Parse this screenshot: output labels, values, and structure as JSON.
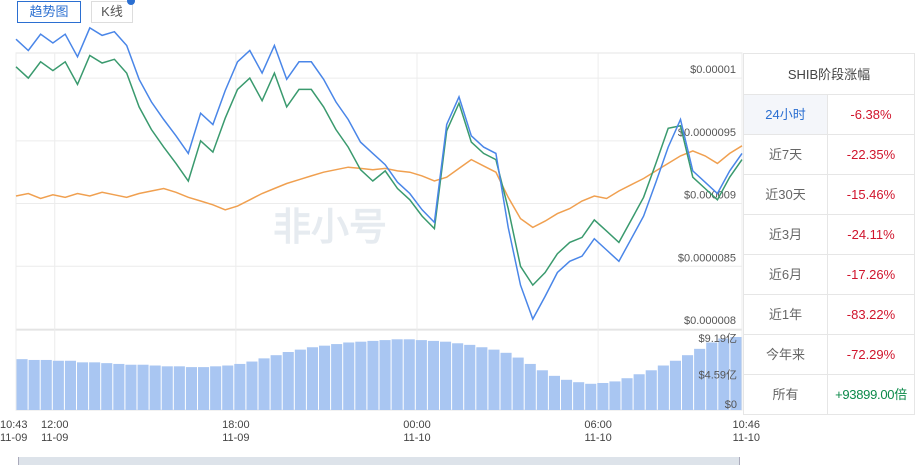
{
  "tabs": [
    {
      "label": "趋势图",
      "active": true
    },
    {
      "label": "K线",
      "active": false
    }
  ],
  "panel": {
    "title": "SHIB阶段涨幅",
    "rows": [
      {
        "period": "24小时",
        "change": "-6.38%",
        "selected": true
      },
      {
        "period": "近7天",
        "change": "-22.35%"
      },
      {
        "period": "近30天",
        "change": "-15.46%"
      },
      {
        "period": "近3月",
        "change": "-24.11%"
      },
      {
        "period": "近6月",
        "change": "-17.26%"
      },
      {
        "period": "近1年",
        "change": "-83.22%"
      },
      {
        "period": "今年来",
        "change": "-72.29%"
      },
      {
        "period": "所有",
        "change": "+93899.00倍",
        "positive": true
      }
    ]
  },
  "watermark": "非小号",
  "chart_data": {
    "type": "line",
    "colors": {
      "blue": "#4a86e8",
      "green": "#3a9a6e",
      "orange": "#f0a050",
      "volume": "#a9c6f2",
      "grid": "#ececec"
    },
    "price_axis": {
      "ticks": [
        1e-05,
        9.5e-06,
        9e-06,
        8.5e-06,
        8e-06
      ],
      "labels": [
        "$0.00001",
        "$0.0000095",
        "$0.000009",
        "$0.0000085",
        "$0.000008"
      ],
      "range": [
        8e-06,
        1.02e-05
      ]
    },
    "volume_axis": {
      "labels": [
        "$9.19亿",
        "$4.59亿",
        "$0"
      ],
      "ticks": [
        9.19,
        4.59,
        0
      ],
      "unit": "亿"
    },
    "x_ticks": [
      {
        "t": 0,
        "time": "10:43",
        "date": "11-09"
      },
      {
        "t": 77,
        "time": "12:00",
        "date": "11-09"
      },
      {
        "t": 437,
        "time": "18:00",
        "date": "11-09"
      },
      {
        "t": 797,
        "time": "00:00",
        "date": "11-10"
      },
      {
        "t": 1157,
        "time": "06:00",
        "date": "11-10"
      },
      {
        "t": 1443,
        "time": "10:46",
        "date": "11-10"
      }
    ],
    "x_range_minutes": [
      0,
      1443
    ],
    "series": [
      {
        "color": "blue",
        "values": [
          1.031e-05,
          1.022e-05,
          1.035e-05,
          1.028e-05,
          1.035e-05,
          1.017e-05,
          1.04e-05,
          1.034e-05,
          1.037e-05,
          1.026e-05,
          9.99e-06,
          9.81e-06,
          9.67e-06,
          9.54e-06,
          9.4e-06,
          9.72e-06,
          9.63e-06,
          9.9e-06,
          1.013e-05,
          1.022e-05,
          1.004e-05,
          1.026e-05,
          9.99e-06,
          1.013e-05,
          1.013e-05,
          9.99e-06,
          9.81e-06,
          9.67e-06,
          9.49e-06,
          9.4e-06,
          9.31e-06,
          9.17e-06,
          9.08e-06,
          8.95e-06,
          8.85e-06,
          9.63e-06,
          9.85e-06,
          9.54e-06,
          9.45e-06,
          9.4e-06,
          8.81e-06,
          8.35e-06,
          8.08e-06,
          8.26e-06,
          8.45e-06,
          8.54e-06,
          8.58e-06,
          8.72e-06,
          8.63e-06,
          8.54e-06,
          8.72e-06,
          8.9e-06,
          9.17e-06,
          9.45e-06,
          9.67e-06,
          9.26e-06,
          9.17e-06,
          9.08e-06,
          9.26e-06,
          9.4e-06
        ]
      },
      {
        "color": "green",
        "values": [
          1.009e-05,
          1e-05,
          1.013e-05,
          1.006e-05,
          1.013e-05,
          9.95e-06,
          1.018e-05,
          1.012e-05,
          1.015e-05,
          1.004e-05,
          9.77e-06,
          9.59e-06,
          9.45e-06,
          9.32e-06,
          9.18e-06,
          9.5e-06,
          9.41e-06,
          9.68e-06,
          9.91e-06,
          1e-05,
          9.82e-06,
          1.004e-05,
          9.77e-06,
          9.91e-06,
          9.91e-06,
          9.77e-06,
          9.59e-06,
          9.45e-06,
          9.27e-06,
          9.18e-06,
          9.26e-06,
          9.12e-06,
          9.03e-06,
          8.9e-06,
          8.8e-06,
          9.58e-06,
          9.8e-06,
          9.49e-06,
          9.4e-06,
          9.35e-06,
          8.96e-06,
          8.5e-06,
          8.35e-06,
          8.45e-06,
          8.6e-06,
          8.69e-06,
          8.73e-06,
          8.87e-06,
          8.78e-06,
          8.69e-06,
          8.87e-06,
          9.05e-06,
          9.32e-06,
          9.6e-06,
          9.62e-06,
          9.21e-06,
          9.12e-06,
          9.03e-06,
          9.21e-06,
          9.35e-06
        ]
      },
      {
        "color": "orange",
        "values": [
          9.06e-06,
          9.08e-06,
          9.04e-06,
          9.07e-06,
          9.05e-06,
          9.08e-06,
          9.06e-06,
          9.09e-06,
          9.07e-06,
          9.05e-06,
          9.08e-06,
          9.1e-06,
          9.12e-06,
          9.09e-06,
          9.05e-06,
          9.02e-06,
          8.99e-06,
          8.95e-06,
          8.98e-06,
          9.03e-06,
          9.08e-06,
          9.12e-06,
          9.16e-06,
          9.19e-06,
          9.22e-06,
          9.25e-06,
          9.27e-06,
          9.29e-06,
          9.28e-06,
          9.27e-06,
          9.28e-06,
          9.26e-06,
          9.25e-06,
          9.22e-06,
          9.18e-06,
          9.21e-06,
          9.28e-06,
          9.35e-06,
          9.3e-06,
          9.25e-06,
          9.05e-06,
          8.88e-06,
          8.81e-06,
          8.86e-06,
          8.92e-06,
          8.96e-06,
          9.02e-06,
          9.06e-06,
          9.04e-06,
          9.1e-06,
          9.15e-06,
          9.2e-06,
          9.26e-06,
          9.32e-06,
          9.38e-06,
          9.42e-06,
          9.38e-06,
          9.32e-06,
          9.4e-06,
          9.46e-06
        ]
      }
    ],
    "volume": [
      6.4,
      6.3,
      6.3,
      6.2,
      6.2,
      6.0,
      6.0,
      5.9,
      5.8,
      5.7,
      5.7,
      5.6,
      5.5,
      5.5,
      5.4,
      5.4,
      5.5,
      5.6,
      5.8,
      6.1,
      6.5,
      6.9,
      7.3,
      7.6,
      7.9,
      8.1,
      8.3,
      8.5,
      8.6,
      8.7,
      8.8,
      8.9,
      8.9,
      8.8,
      8.7,
      8.6,
      8.4,
      8.2,
      7.9,
      7.6,
      7.2,
      6.6,
      5.8,
      5.0,
      4.3,
      3.8,
      3.5,
      3.3,
      3.4,
      3.6,
      4.0,
      4.5,
      5.0,
      5.6,
      6.2,
      6.9,
      7.7,
      8.5,
      9.0,
      9.19
    ]
  }
}
